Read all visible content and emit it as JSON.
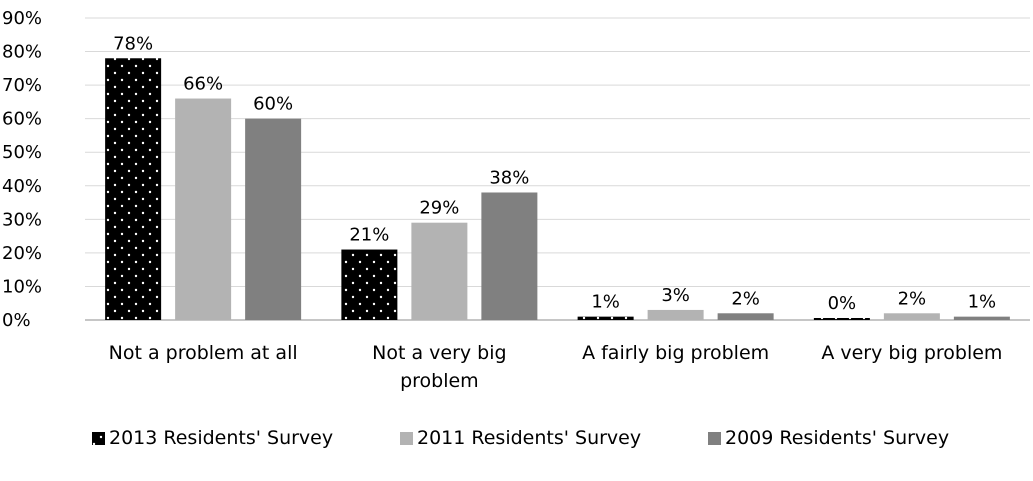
{
  "chart_data": {
    "type": "bar",
    "title": "",
    "xlabel": "",
    "ylabel": "",
    "categories": [
      [
        "Not a problem at all"
      ],
      [
        "Not a very big",
        "problem"
      ],
      [
        "A fairly big problem"
      ],
      [
        "A very big problem"
      ]
    ],
    "series": [
      {
        "name": "2013 Residents' Survey",
        "values": [
          78,
          21,
          1,
          0
        ],
        "labels": [
          "78%",
          "21%",
          "1%",
          "0%"
        ],
        "color": "#000000",
        "pattern": "dots"
      },
      {
        "name": "2011 Residents' Survey",
        "values": [
          66,
          29,
          3,
          2
        ],
        "labels": [
          "66%",
          "29%",
          "3%",
          "2%"
        ],
        "color": "#b3b3b3"
      },
      {
        "name": "2009 Residents' Survey",
        "values": [
          60,
          38,
          2,
          1
        ],
        "labels": [
          "60%",
          "38%",
          "2%",
          "1%"
        ],
        "color": "#808080"
      }
    ],
    "ylim": [
      0,
      90
    ],
    "yticks": [
      "0%",
      "10%",
      "20%",
      "30%",
      "40%",
      "50%",
      "60%",
      "70%",
      "80%",
      "90%"
    ],
    "grid": true,
    "legend": "bottom"
  }
}
